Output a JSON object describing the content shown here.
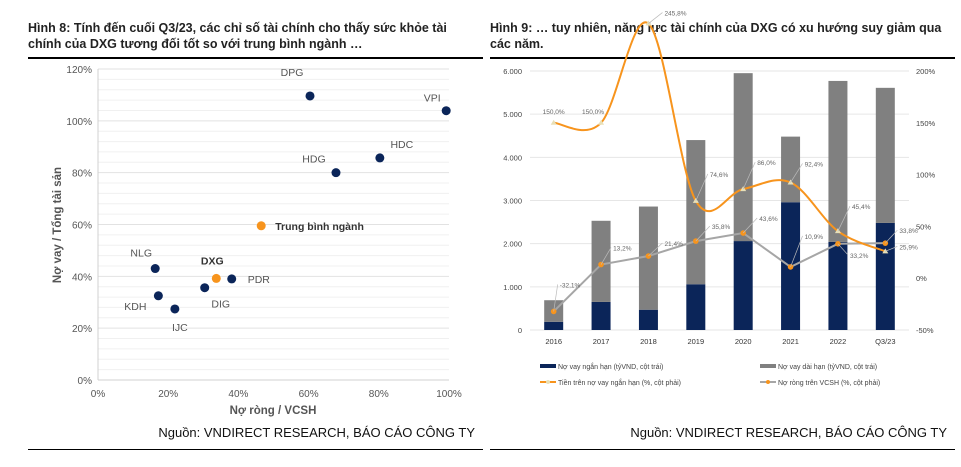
{
  "left": {
    "title": "Hình 8: Tính đến cuối Q3/23, các chỉ số tài chính cho thấy sức khỏe tài chính của DXG tương đối tốt so với trung bình ngành …",
    "source": "Nguồn: VNDIRECT RESEARCH, BÁO CÁO CÔNG TY"
  },
  "right": {
    "title": "Hình 9: … tuy nhiên, năng lực tài chính của DXG có xu hướng suy giảm qua các năm.",
    "source": "Nguồn: VNDIRECT RESEARCH, BÁO CÁO CÔNG TY"
  },
  "chart_data": [
    {
      "type": "scatter",
      "xlabel": "Nợ ròng / VCSH",
      "ylabel": "Nợ vay / Tổng tài sản",
      "xlim": [
        0,
        100
      ],
      "ylim": [
        0,
        120
      ],
      "x_ticks": [
        "0%",
        "20%",
        "40%",
        "60%",
        "80%",
        "100%"
      ],
      "y_ticks": [
        "0%",
        "20%",
        "40%",
        "60%",
        "80%",
        "100%",
        "120%"
      ],
      "grid": true,
      "points": [
        {
          "label": "DPG",
          "x": 60.4,
          "y": 109.6,
          "color": "#0b2559"
        },
        {
          "label": "VPI",
          "x": 99.2,
          "y": 103.9,
          "color": "#0b2559"
        },
        {
          "label": "HDC",
          "x": 80.3,
          "y": 85.7,
          "color": "#0b2559"
        },
        {
          "label": "HDG",
          "x": 67.8,
          "y": 80.0,
          "color": "#0b2559"
        },
        {
          "label": "Trung bình ngành",
          "x": 46.5,
          "y": 59.5,
          "color": "#f7941d",
          "bold": true
        },
        {
          "label": "NLG",
          "x": 16.3,
          "y": 43.0,
          "color": "#0b2559"
        },
        {
          "label": "DXG",
          "x": 33.7,
          "y": 39.2,
          "color": "#f7941d",
          "bold": true
        },
        {
          "label": "PDR",
          "x": 38.1,
          "y": 39.0,
          "color": "#0b2559"
        },
        {
          "label": "DIG",
          "x": 30.4,
          "y": 35.6,
          "color": "#0b2559"
        },
        {
          "label": "KDH",
          "x": 17.2,
          "y": 32.5,
          "color": "#0b2559"
        },
        {
          "label": "IJC",
          "x": 21.9,
          "y": 27.4,
          "color": "#0b2559"
        }
      ]
    },
    {
      "type": "bar",
      "stacked": true,
      "categories": [
        "2016",
        "2017",
        "2018",
        "2019",
        "2020",
        "2021",
        "2022",
        "Q3/23"
      ],
      "ylim": [
        0,
        6000
      ],
      "y_ticks": [
        "0",
        "1.000",
        "2.000",
        "3.000",
        "4.000",
        "5.000",
        "6.000"
      ],
      "y2lim": [
        -50,
        200
      ],
      "y2_ticks": [
        "-50%",
        "0%",
        "50%",
        "100%",
        "150%",
        "200%"
      ],
      "grid": true,
      "legend": "bottom",
      "series": [
        {
          "name": "Nợ vay ngắn hạn (tỷVND, cột trái)",
          "kind": "bar",
          "color": "#0b2559",
          "values": [
            190,
            650,
            470,
            1060,
            2060,
            2960,
            2040,
            2480
          ]
        },
        {
          "name": "Nợ vay dài hạn (tỷVND, cột trái)",
          "kind": "bar",
          "color": "#808080",
          "values": [
            500,
            1880,
            2390,
            3340,
            3890,
            1520,
            3730,
            3130
          ]
        },
        {
          "name": "Tiền trên nợ vay ngắn hạn (%, cột phải)",
          "kind": "line",
          "axis": "right",
          "color": "#f7941d",
          "values": [
            150.0,
            150.0,
            245.8,
            74.6,
            86.0,
            92.4,
            45.4,
            25.9
          ],
          "labels": [
            "150,0%",
            "150,0%",
            "245,8%",
            "74,6%",
            "86,0%",
            "92,4%",
            "45,4%",
            "25,9%"
          ]
        },
        {
          "name": "Nợ ròng trên VCSH (%, cột phải)",
          "kind": "line",
          "axis": "right",
          "color": "#a6a6a6",
          "values": [
            -32.1,
            13.2,
            21.4,
            35.8,
            43.6,
            10.9,
            33.2,
            33.8
          ],
          "labels": [
            "-32,1%",
            "13,2%",
            "21,4%",
            "35,8%",
            "43,6%",
            "10,9%",
            "33,2%",
            "33,8%"
          ]
        }
      ]
    }
  ]
}
